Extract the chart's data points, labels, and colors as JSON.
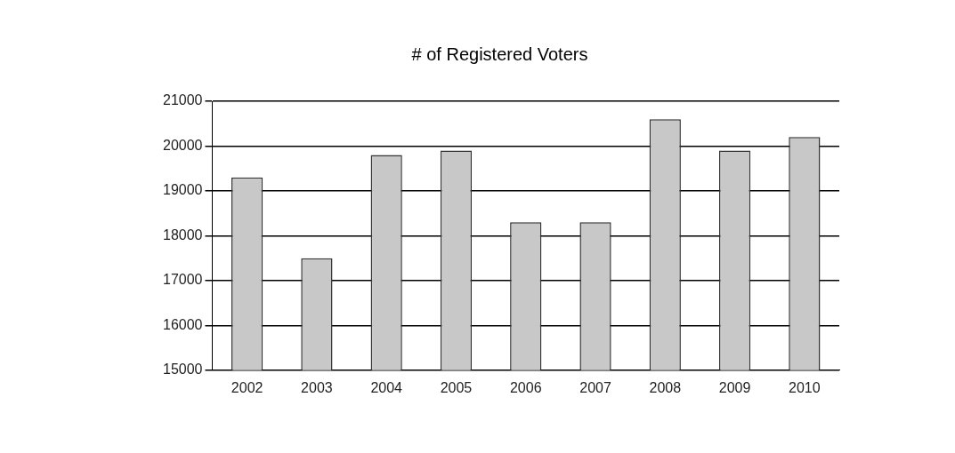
{
  "chart_data": {
    "type": "bar",
    "title": "# of Registered Voters",
    "categories": [
      "2002",
      "2003",
      "2004",
      "2005",
      "2006",
      "2007",
      "2008",
      "2009",
      "2010"
    ],
    "values": [
      19300,
      17500,
      19800,
      19900,
      18300,
      18300,
      20600,
      19900,
      20200
    ],
    "color": "#c8c8c8",
    "ylim": [
      15000,
      21000
    ],
    "yticks": [
      15000,
      16000,
      17000,
      18000,
      19000,
      20000,
      21000
    ],
    "grid": "y",
    "legend": false
  }
}
